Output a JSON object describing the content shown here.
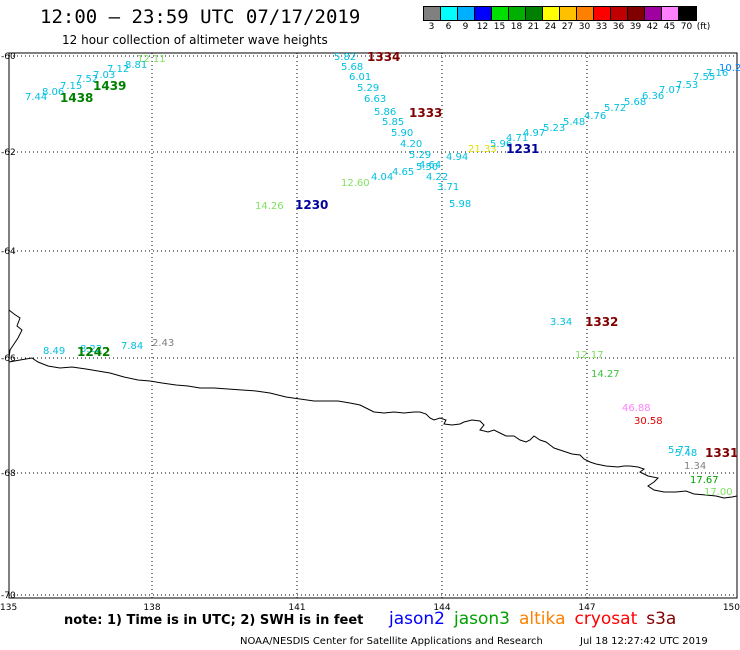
{
  "header": {
    "title": "12:00 – 23:59 UTC 07/17/2019",
    "subtitle": "12 hour collection of altimeter wave heights"
  },
  "legend": {
    "colors": [
      "#808080",
      "#00ffff",
      "#00b0ff",
      "#0000ff",
      "#00e000",
      "#00b000",
      "#008000",
      "#ffff00",
      "#ffc000",
      "#ff8000",
      "#ff0000",
      "#c00000",
      "#800000",
      "#a000a0",
      "#ff80ff",
      "#000000"
    ],
    "labels": [
      "3",
      "6",
      "9",
      "12",
      "15",
      "18",
      "21",
      "24",
      "27",
      "30",
      "33",
      "36",
      "39",
      "42",
      "45",
      "70",
      "(ft)"
    ]
  },
  "axes": {
    "lat_labels": [
      "-60",
      "-62",
      "-64",
      "-66",
      "-68",
      "-70"
    ],
    "lon_labels": [
      "135",
      "138",
      "141",
      "144",
      "147",
      "150"
    ]
  },
  "observations": [
    {
      "v": "12.11",
      "c": "#80e060"
    },
    {
      "v": "8.81",
      "c": "#00c0e0"
    },
    {
      "v": "7.12",
      "c": "#00c0e0"
    },
    {
      "v": "7.03",
      "c": "#00c0e0"
    },
    {
      "v": "7.52",
      "c": "#00c0e0"
    },
    {
      "v": "7.15",
      "c": "#00c0e0"
    },
    {
      "v": "8.06",
      "c": "#00c0e0"
    },
    {
      "v": "7.44",
      "c": "#00c0e0"
    },
    {
      "v": "5.82",
      "c": "#00c0e0"
    },
    {
      "v": "5.68",
      "c": "#00c0e0"
    },
    {
      "v": "6.01",
      "c": "#00c0e0"
    },
    {
      "v": "5.29",
      "c": "#00c0e0"
    },
    {
      "v": "6.63",
      "c": "#00c0e0"
    },
    {
      "v": "5.86",
      "c": "#00c0e0"
    },
    {
      "v": "5.85",
      "c": "#00c0e0"
    },
    {
      "v": "5.90",
      "c": "#00c0e0"
    },
    {
      "v": "4.20",
      "c": "#00c0e0"
    },
    {
      "v": "5.29",
      "c": "#00c0e0"
    },
    {
      "v": "4.94",
      "c": "#00c0e0"
    },
    {
      "v": "5.50",
      "c": "#00c0e0"
    },
    {
      "v": "4.64",
      "c": "#00c0e0"
    },
    {
      "v": "4.65",
      "c": "#00c0e0"
    },
    {
      "v": "4.04",
      "c": "#00c0e0"
    },
    {
      "v": "4.22",
      "c": "#00c0e0"
    },
    {
      "v": "3.71",
      "c": "#00c0e0"
    },
    {
      "v": "5.98",
      "c": "#00c0e0"
    },
    {
      "v": "12.60",
      "c": "#80e060"
    },
    {
      "v": "21.33",
      "c": "#e0e000"
    },
    {
      "v": "5.96",
      "c": "#00c0e0"
    },
    {
      "v": "4.71",
      "c": "#00c0e0"
    },
    {
      "v": "4.97",
      "c": "#00c0e0"
    },
    {
      "v": "5.23",
      "c": "#00c0e0"
    },
    {
      "v": "5.48",
      "c": "#00c0e0"
    },
    {
      "v": "4.76",
      "c": "#00c0e0"
    },
    {
      "v": "5.72",
      "c": "#00c0e0"
    },
    {
      "v": "5.68",
      "c": "#00c0e0"
    },
    {
      "v": "6.36",
      "c": "#00c0e0"
    },
    {
      "v": "7.07",
      "c": "#00c0e0"
    },
    {
      "v": "7.53",
      "c": "#00c0e0"
    },
    {
      "v": "7.55",
      "c": "#00c0e0"
    },
    {
      "v": "7.16",
      "c": "#00c0e0"
    },
    {
      "v": "10.2",
      "c": "#0080ff"
    },
    {
      "v": "14.26",
      "c": "#80e060"
    },
    {
      "v": "8.49",
      "c": "#00c0e0"
    },
    {
      "v": "8.22",
      "c": "#00c0e0"
    },
    {
      "v": "7.84",
      "c": "#00c0e0"
    },
    {
      "v": "2.43",
      "c": "#808080"
    },
    {
      "v": "3.34",
      "c": "#00c0e0"
    },
    {
      "v": "12.17",
      "c": "#80e060"
    },
    {
      "v": "14.27",
      "c": "#40c040"
    },
    {
      "v": "46.88",
      "c": "#ff80ff"
    },
    {
      "v": "30.58",
      "c": "#e00000"
    },
    {
      "v": "5.77",
      "c": "#00c0e0"
    },
    {
      "v": "5.48",
      "c": "#00c0e0"
    },
    {
      "v": "1.34",
      "c": "#808080"
    },
    {
      "v": "17.67",
      "c": "#00a000"
    },
    {
      "v": "17.00",
      "c": "#80e060"
    }
  ],
  "time_labels": [
    {
      "t": "1334",
      "c": "#800000"
    },
    {
      "t": "1333",
      "c": "#800000"
    },
    {
      "t": "1231",
      "c": "#0000a0"
    },
    {
      "t": "1230",
      "c": "#0000a0"
    },
    {
      "t": "1439",
      "c": "#008000"
    },
    {
      "t": "1438",
      "c": "#008000"
    },
    {
      "t": "1242",
      "c": "#008000"
    },
    {
      "t": "1332",
      "c": "#800000"
    },
    {
      "t": "1331",
      "c": "#800000"
    }
  ],
  "footer": {
    "note": "note:  1) Time is in UTC;  2) SWH is in feet",
    "satellites": [
      {
        "name": "jason2",
        "color": "#0000ff"
      },
      {
        "name": "jason3",
        "color": "#00a000"
      },
      {
        "name": "altika",
        "color": "#ff8000"
      },
      {
        "name": "cryosat",
        "color": "#ff0000"
      },
      {
        "name": "s3a",
        "color": "#800000"
      }
    ],
    "credit": "NOAA/NESDIS Center for Satellite Applications and Research",
    "timestamp": "Jul 18 12:27:42 UTC 2019"
  }
}
